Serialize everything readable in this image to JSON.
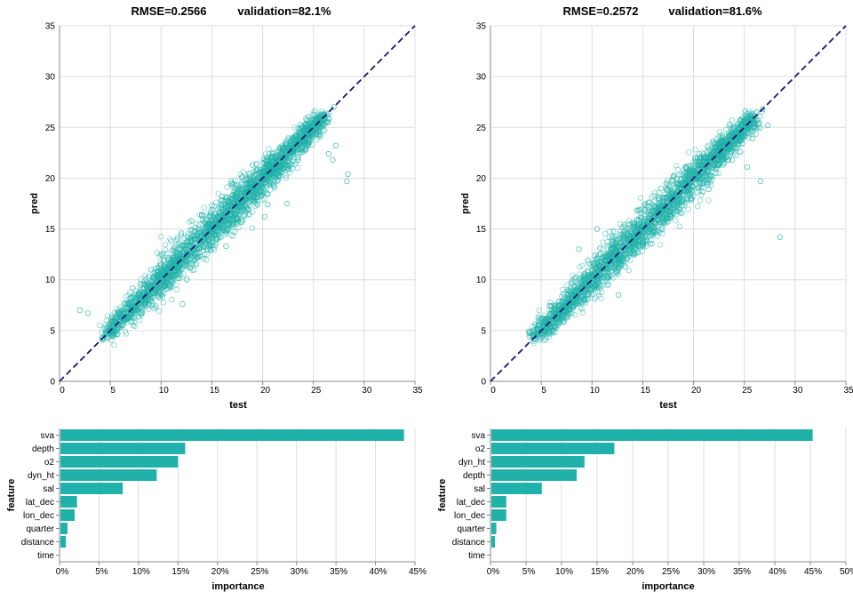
{
  "colors": {
    "teal": "#20b2aa",
    "diag": "#191970"
  },
  "chart_data": [
    {
      "type": "scatter",
      "title_rmse": "RMSE=0.2566",
      "title_validation": "validation=82.1%",
      "xlabel": "test",
      "ylabel": "pred",
      "xlim": [
        0,
        35
      ],
      "ylim": [
        0,
        35
      ],
      "ticks": [
        "0",
        "5",
        "10",
        "15",
        "20",
        "25",
        "30",
        "35"
      ],
      "reference_line": "y = x (dashed)",
      "points": [
        [
          2.0,
          7.0
        ],
        [
          2.8,
          6.7
        ],
        [
          4.2,
          4.3
        ],
        [
          4.6,
          4.8
        ],
        [
          5.0,
          5.4
        ],
        [
          5.5,
          5.9
        ],
        [
          6.0,
          6.8
        ],
        [
          6.5,
          6.1
        ],
        [
          7.0,
          8.2
        ],
        [
          7.5,
          7.0
        ],
        [
          8.0,
          9.6
        ],
        [
          8.5,
          7.8
        ],
        [
          9.0,
          11.0
        ],
        [
          9.5,
          8.9
        ],
        [
          10.0,
          12.5
        ],
        [
          10.5,
          9.7
        ],
        [
          11.0,
          13.8
        ],
        [
          11.5,
          10.5
        ],
        [
          12.0,
          14.6
        ],
        [
          12.5,
          11.4
        ],
        [
          13.0,
          15.8
        ],
        [
          13.5,
          12.2
        ],
        [
          14.0,
          16.4
        ],
        [
          14.5,
          13.0
        ],
        [
          15.0,
          17.3
        ],
        [
          15.5,
          14.0
        ],
        [
          16.0,
          18.2
        ],
        [
          16.5,
          15.0
        ],
        [
          17.0,
          19.5
        ],
        [
          17.5,
          15.9
        ],
        [
          18.0,
          20.1
        ],
        [
          18.5,
          17.0
        ],
        [
          19.0,
          21.3
        ],
        [
          19.5,
          18.1
        ],
        [
          20.0,
          20.6
        ],
        [
          20.5,
          17.4
        ],
        [
          21.0,
          22.4
        ],
        [
          21.5,
          19.8
        ],
        [
          22.0,
          23.0
        ],
        [
          22.5,
          20.9
        ],
        [
          23.0,
          23.8
        ],
        [
          23.5,
          21.8
        ],
        [
          24.0,
          24.9
        ],
        [
          24.5,
          23.3
        ],
        [
          25.0,
          25.8
        ],
        [
          25.5,
          24.6
        ],
        [
          26.0,
          26.3
        ],
        [
          26.5,
          22.4
        ],
        [
          27.0,
          27.0
        ],
        [
          27.2,
          23.2
        ],
        [
          28.4,
          20.4
        ],
        [
          28.3,
          19.7
        ],
        [
          26.9,
          21.8
        ],
        [
          22.4,
          17.5
        ],
        [
          21.6,
          20.2
        ],
        [
          12.1,
          7.6
        ],
        [
          7.2,
          9.2
        ],
        [
          16.4,
          13.3
        ],
        [
          20.2,
          16.2
        ]
      ],
      "density": [
        [
          4.5,
          26,
          4.6,
          1.2
        ]
      ]
    },
    {
      "type": "scatter",
      "title_rmse": "RMSE=0.2572",
      "title_validation": "validation=81.6%",
      "xlabel": "test",
      "ylabel": "pred",
      "xlim": [
        0,
        35
      ],
      "ylim": [
        0,
        35
      ],
      "ticks": [
        "0",
        "5",
        "10",
        "15",
        "20",
        "25",
        "30",
        "35"
      ],
      "reference_line": "y = x (dashed)",
      "points": [
        [
          4.3,
          4.5
        ],
        [
          4.8,
          5.6
        ],
        [
          5.4,
          4.9
        ],
        [
          6.0,
          7.4
        ],
        [
          6.6,
          6.0
        ],
        [
          7.2,
          8.6
        ],
        [
          7.8,
          7.1
        ],
        [
          8.4,
          10.2
        ],
        [
          9.0,
          8.3
        ],
        [
          9.6,
          11.9
        ],
        [
          10.2,
          9.2
        ],
        [
          10.8,
          13.1
        ],
        [
          11.4,
          10.4
        ],
        [
          12.0,
          14.2
        ],
        [
          12.6,
          11.6
        ],
        [
          13.2,
          15.4
        ],
        [
          13.8,
          12.6
        ],
        [
          14.4,
          16.8
        ],
        [
          15.0,
          13.7
        ],
        [
          15.6,
          17.6
        ],
        [
          16.2,
          14.8
        ],
        [
          16.8,
          19.0
        ],
        [
          17.4,
          16.0
        ],
        [
          18.0,
          20.2
        ],
        [
          18.6,
          16.9
        ],
        [
          19.2,
          21.1
        ],
        [
          19.8,
          18.0
        ],
        [
          20.4,
          22.0
        ],
        [
          21.0,
          19.5
        ],
        [
          21.6,
          22.8
        ],
        [
          22.2,
          20.5
        ],
        [
          22.8,
          23.6
        ],
        [
          23.4,
          21.8
        ],
        [
          24.0,
          24.4
        ],
        [
          24.6,
          22.6
        ],
        [
          25.2,
          25.6
        ],
        [
          25.8,
          23.9
        ],
        [
          26.2,
          26.5
        ],
        [
          26.8,
          26.8
        ],
        [
          27.3,
          25.2
        ],
        [
          28.5,
          14.2
        ],
        [
          26.6,
          19.7
        ],
        [
          25.3,
          21.1
        ],
        [
          23.8,
          21.8
        ],
        [
          21.5,
          18.9
        ],
        [
          12.6,
          8.5
        ],
        [
          18.9,
          17.3
        ],
        [
          10.5,
          15.0
        ],
        [
          8.7,
          13.0
        ]
      ],
      "density": [
        [
          4.3,
          26,
          4.4,
          1.2
        ]
      ]
    },
    {
      "type": "bar",
      "orientation": "horizontal",
      "xlabel": "importance",
      "ylabel": "feature",
      "xlim": [
        0,
        0.45
      ],
      "ticks": [
        "0%",
        "5%",
        "10%",
        "15%",
        "20%",
        "25%",
        "30%",
        "35%",
        "40%",
        "45%"
      ],
      "categories": [
        "sva",
        "depth",
        "o2",
        "dyn_ht",
        "sal",
        "lat_dec",
        "lon_dec",
        "quarter",
        "distance",
        "time"
      ],
      "values": [
        0.435,
        0.158,
        0.149,
        0.122,
        0.079,
        0.021,
        0.018,
        0.009,
        0.007,
        0.0
      ]
    },
    {
      "type": "bar",
      "orientation": "horizontal",
      "xlabel": "importance",
      "ylabel": "feature",
      "xlim": [
        0,
        0.5
      ],
      "ticks": [
        "0%",
        "5%",
        "10%",
        "15%",
        "20%",
        "25%",
        "30%",
        "35%",
        "40%",
        "45%",
        "50%"
      ],
      "categories": [
        "sva",
        "o2",
        "dyn_ht",
        "depth",
        "sal",
        "lat_dec",
        "lon_dec",
        "quarter",
        "distance",
        "time"
      ],
      "values": [
        0.452,
        0.173,
        0.131,
        0.12,
        0.071,
        0.021,
        0.021,
        0.007,
        0.005,
        0.0
      ]
    }
  ]
}
